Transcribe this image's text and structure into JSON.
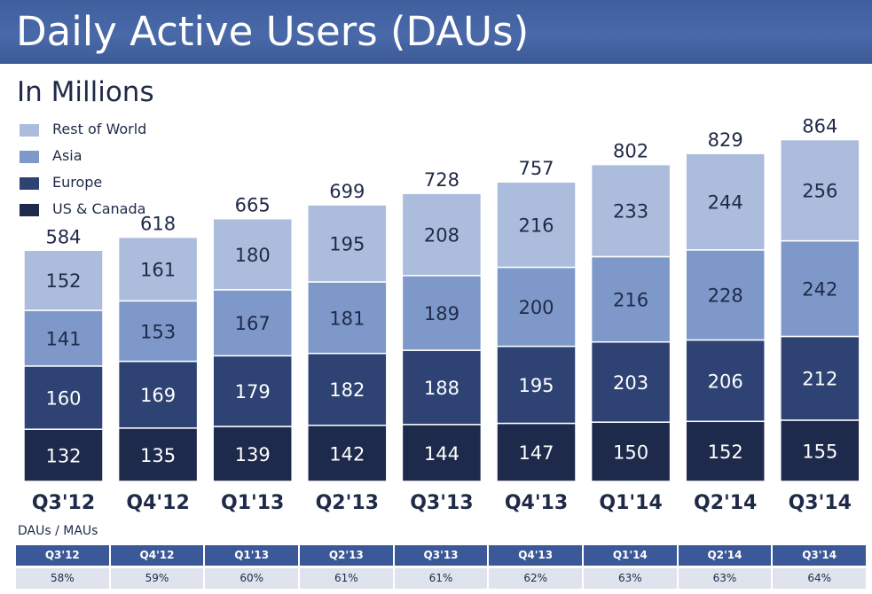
{
  "header": {
    "title": "Daily Active Users (DAUs)"
  },
  "subtitle": "In Millions",
  "chart_data": {
    "type": "bar",
    "stacked": true,
    "categories": [
      "Q3'12",
      "Q4'12",
      "Q1'13",
      "Q2'13",
      "Q3'13",
      "Q4'13",
      "Q1'14",
      "Q2'14",
      "Q3'14"
    ],
    "series": [
      {
        "name": "US & Canada",
        "color": "#1d2a4b",
        "values": [
          132,
          135,
          139,
          142,
          144,
          147,
          150,
          152,
          155
        ]
      },
      {
        "name": "Europe",
        "color": "#2e4373",
        "values": [
          160,
          169,
          179,
          182,
          188,
          195,
          203,
          206,
          212
        ]
      },
      {
        "name": "Asia",
        "color": "#7d98c9",
        "values": [
          141,
          153,
          167,
          181,
          189,
          200,
          216,
          228,
          242
        ]
      },
      {
        "name": "Rest of World",
        "color": "#abbcdc",
        "values": [
          152,
          161,
          180,
          195,
          208,
          216,
          233,
          244,
          256
        ]
      }
    ],
    "totals": [
      584,
      618,
      665,
      699,
      728,
      757,
      802,
      829,
      864
    ],
    "legend_order": [
      "Rest of World",
      "Asia",
      "Europe",
      "US & Canada"
    ],
    "legend_position": "top-left",
    "ylim": [
      0,
      864
    ],
    "grid": false
  },
  "table": {
    "label": "DAUs / MAUs",
    "headers": [
      "Q3'12",
      "Q4'12",
      "Q1'13",
      "Q2'13",
      "Q3'13",
      "Q4'13",
      "Q1'14",
      "Q2'14",
      "Q3'14"
    ],
    "values": [
      "58%",
      "59%",
      "60%",
      "61%",
      "61%",
      "62%",
      "63%",
      "63%",
      "64%"
    ]
  },
  "colors": {
    "header_bg": "#3b5998",
    "table_header_bg": "#3b5998",
    "table_cell_bg": "#dfe3ee",
    "text_dark": "#1f2a48"
  }
}
